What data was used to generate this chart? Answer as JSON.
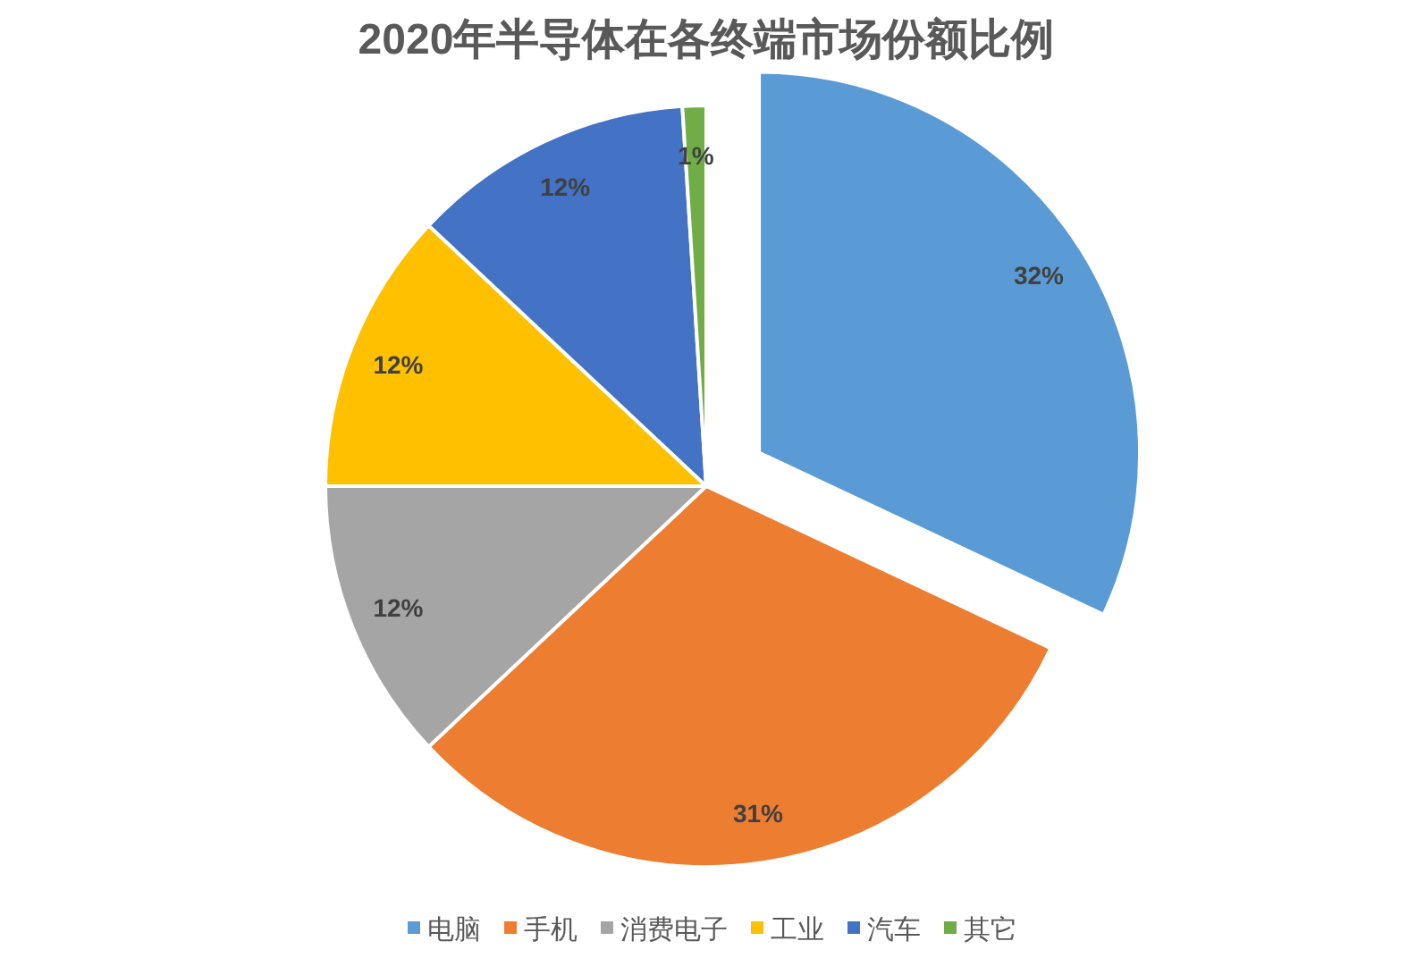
{
  "chart_data": {
    "type": "pie",
    "title": "2020年半导体在各终端市场份额比例",
    "categories": [
      "电脑",
      "手机",
      "消费电子",
      "工业",
      "汽车",
      "其它"
    ],
    "values": [
      32,
      31,
      12,
      12,
      12,
      1
    ],
    "value_labels": [
      "32%",
      "31%",
      "12%",
      "12%",
      "12%",
      "1%"
    ],
    "colors": [
      "#5b9bd5",
      "#ed7d31",
      "#a5a5a5",
      "#ffc000",
      "#4472c4",
      "#70ad47"
    ],
    "legend": "bottom"
  }
}
